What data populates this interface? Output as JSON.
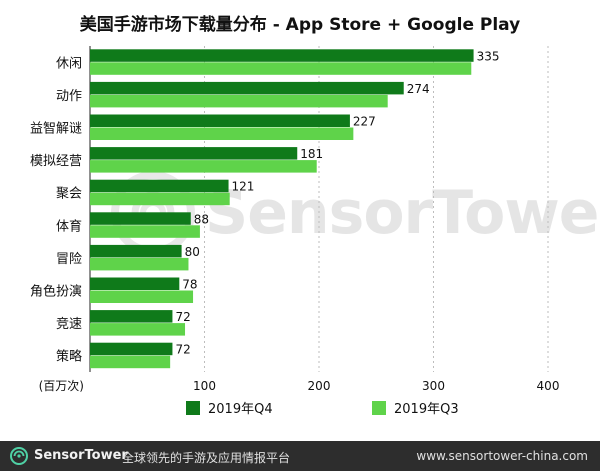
{
  "title": "美国手游市场下载量分布 - App Store + Google Play",
  "unit_label": "(百万次)",
  "legend": {
    "q4": "2019年Q4",
    "q3": "2019年Q3"
  },
  "colors": {
    "q4": "#0f7a1a",
    "q3": "#5fd34a",
    "footer_bg": "#2d2d2d"
  },
  "watermark": "SensorTower",
  "footer": {
    "brand": "SensorTower",
    "tagline": "全球领先的手游及应用情报平台",
    "url": "www.sensortower-china.com"
  },
  "chart_data": {
    "type": "bar",
    "orientation": "horizontal",
    "title": "美国手游市场下载量分布 - App Store + Google Play",
    "xlabel": "(百万次)",
    "ylabel": "",
    "xlim": [
      0,
      400
    ],
    "xticks": [
      100,
      200,
      300,
      400
    ],
    "grid": true,
    "legend_position": "bottom",
    "categories": [
      "休闲",
      "动作",
      "益智解谜",
      "模拟经营",
      "聚会",
      "体育",
      "冒险",
      "角色扮演",
      "竞速",
      "策略"
    ],
    "series": [
      {
        "name": "2019年Q4",
        "values": [
          335,
          274,
          227,
          181,
          121,
          88,
          80,
          78,
          72,
          72
        ],
        "labeled": true
      },
      {
        "name": "2019年Q3",
        "values": [
          333,
          260,
          230,
          198,
          122,
          96,
          86,
          90,
          83,
          70
        ],
        "labeled": false
      }
    ]
  }
}
